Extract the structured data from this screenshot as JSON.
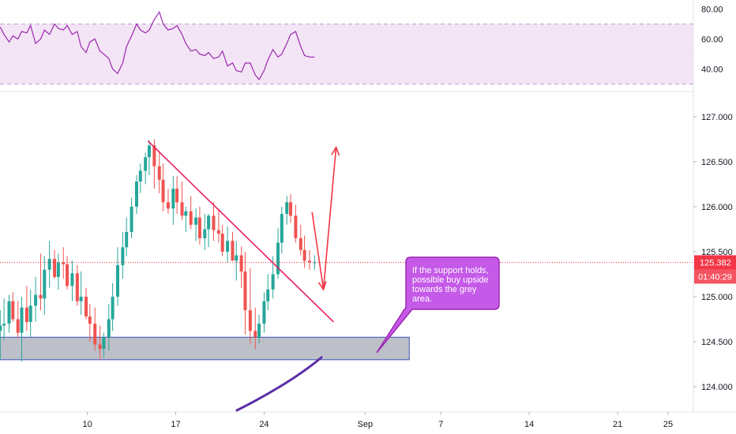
{
  "colors": {
    "up": "#26a69a",
    "down": "#ef5350",
    "rsi_line": "#9c27b0",
    "rsi_band": "#f3e5f5",
    "trendline": "#e91e63",
    "arrow": "#f23645",
    "support_fill": "#b2b5be",
    "support_border": "#3f51b5",
    "note_bg": "#c55ae8",
    "note_border": "#9c27b0",
    "curve": "#5b2ea6",
    "price_tag": "#f23645"
  },
  "rsi_panel": {
    "ticks": [
      "80.00",
      "60.00",
      "40.00"
    ],
    "tick_values": [
      80,
      60,
      40
    ],
    "band": [
      70,
      30
    ],
    "ylim": [
      25,
      86
    ]
  },
  "price_axis": {
    "ticks": [
      "127.000",
      "126.500",
      "126.000",
      "125.500",
      "125.000",
      "124.500",
      "124.000"
    ],
    "tick_values": [
      127.0,
      126.5,
      126.0,
      125.5,
      125.0,
      124.5,
      124.0
    ],
    "ylim": [
      123.72,
      127.28
    ]
  },
  "time_axis": {
    "ticks": [
      "10",
      "17",
      "24",
      "Sep",
      "7",
      "14",
      "21",
      "25"
    ],
    "tick_days": [
      10,
      17,
      24,
      32,
      38,
      45,
      52,
      56
    ],
    "xlim": [
      3.08,
      58
    ]
  },
  "last_price": {
    "label": "125.382",
    "value": 125.382
  },
  "countdown": {
    "label": "01:40:29"
  },
  "annotation": {
    "lines": [
      "If the support holds,",
      "possible buy upside",
      "towards the grey",
      "area."
    ]
  },
  "chart_data": [
    {
      "type": "line",
      "title": "",
      "xlabel": "",
      "ylabel": "",
      "x": [
        3.1,
        3.4,
        3.8,
        4.1,
        4.5,
        4.8,
        5.2,
        5.5,
        5.9,
        6.3,
        6.6,
        7.0,
        7.4,
        7.7,
        8.1,
        8.4,
        8.8,
        9.2,
        9.5,
        9.9,
        10.2,
        10.6,
        11.0,
        11.3,
        11.7,
        12.0,
        12.4,
        12.8,
        13.1,
        13.5,
        13.9,
        14.2,
        14.6,
        14.9,
        15.3,
        15.7,
        16.0,
        16.4,
        16.8,
        17.1,
        17.5,
        17.8,
        18.2,
        18.6,
        18.9,
        19.3,
        19.6,
        20.0,
        20.4,
        20.7,
        21.1,
        21.5,
        21.8,
        22.2,
        22.5,
        22.9,
        23.3,
        23.6,
        24.0,
        24.3,
        24.7,
        25.1,
        25.4,
        25.8,
        26.1,
        26.5,
        26.9,
        27.2,
        27.6,
        28.0
      ],
      "series": [
        {
          "values": [
            68,
            63,
            58,
            62,
            60,
            65,
            64,
            69,
            57,
            60,
            66,
            63,
            70,
            67,
            66,
            69,
            63,
            65,
            55,
            51,
            58,
            60,
            52,
            50,
            47,
            40,
            37,
            44,
            55,
            62,
            70,
            66,
            64,
            66,
            73,
            78,
            70,
            66,
            67,
            69,
            63,
            57,
            52,
            53,
            50,
            49,
            51,
            47,
            48,
            52,
            42,
            44,
            39,
            38,
            44,
            44,
            36,
            33,
            39,
            46,
            53,
            48,
            50,
            57,
            63,
            65,
            55,
            49,
            48,
            48
          ]
        }
      ],
      "band": [
        30,
        70
      ],
      "ylim": [
        25,
        86
      ],
      "ticks": [
        80,
        60,
        40
      ]
    },
    {
      "type": "candlestick",
      "title": "",
      "xlabel": "",
      "ylabel": "",
      "x_axis_ticks": [
        "10",
        "17",
        "24",
        "Sep",
        "7",
        "14",
        "21",
        "25"
      ],
      "ylim": [
        123.72,
        127.28
      ],
      "series": [
        {
          "open": [
            124.62,
            124.68,
            124.7,
            124.95,
            124.75,
            124.6,
            124.88,
            124.72,
            124.9,
            125.02,
            124.98,
            125.3,
            125.42,
            125.22,
            125.38,
            125.36,
            125.12,
            125.26,
            124.95,
            125.0,
            124.78,
            124.7,
            124.47,
            124.42,
            124.55,
            124.75,
            125.0,
            125.35,
            125.55,
            125.72,
            126.0,
            126.28,
            126.4,
            126.55,
            126.68,
            126.45,
            126.3,
            126.05,
            125.98,
            126.2,
            126.05,
            125.9,
            125.95,
            125.8,
            125.88,
            125.65,
            125.75,
            125.9,
            125.74,
            125.7,
            125.5,
            125.62,
            125.4,
            125.46,
            125.28,
            124.85,
            124.62,
            124.55,
            124.7,
            124.95,
            125.08,
            125.25,
            125.6,
            125.92,
            126.05,
            125.9,
            125.65,
            125.52,
            125.4,
            125.38
          ],
          "high": [
            124.85,
            124.98,
            125.02,
            125.05,
            124.95,
            125.0,
            125.12,
            125.08,
            125.22,
            125.48,
            125.45,
            125.62,
            125.52,
            125.48,
            125.55,
            125.45,
            125.4,
            125.35,
            125.28,
            125.1,
            124.92,
            124.88,
            124.68,
            124.6,
            124.92,
            125.15,
            125.55,
            125.72,
            125.88,
            126.1,
            126.35,
            126.48,
            126.6,
            126.74,
            126.75,
            126.62,
            126.48,
            126.2,
            126.34,
            126.34,
            126.28,
            126.0,
            126.12,
            125.98,
            126.0,
            125.92,
            125.92,
            126.05,
            125.98,
            125.8,
            125.78,
            125.72,
            125.62,
            125.56,
            125.5,
            125.32,
            124.88,
            124.8,
            125.05,
            125.25,
            125.45,
            125.76,
            126.0,
            126.12,
            126.14,
            126.02,
            125.8,
            125.68,
            125.52,
            125.46
          ],
          "low": [
            124.3,
            124.52,
            124.6,
            124.72,
            124.55,
            124.28,
            124.62,
            124.55,
            124.72,
            124.85,
            124.8,
            125.1,
            125.2,
            125.08,
            125.2,
            125.08,
            124.95,
            124.9,
            124.8,
            124.75,
            124.5,
            124.4,
            124.3,
            124.32,
            124.4,
            124.62,
            124.9,
            125.2,
            125.45,
            125.65,
            125.92,
            126.15,
            126.25,
            126.35,
            126.2,
            126.15,
            125.95,
            125.92,
            125.8,
            125.92,
            125.85,
            125.72,
            125.75,
            125.62,
            125.58,
            125.52,
            125.55,
            125.62,
            125.6,
            125.45,
            125.38,
            125.4,
            125.18,
            125.1,
            124.58,
            124.48,
            124.42,
            124.48,
            124.6,
            124.85,
            124.98,
            125.2,
            125.48,
            125.8,
            125.82,
            125.6,
            125.46,
            125.32,
            125.3,
            125.3
          ],
          "close": [
            124.68,
            124.7,
            124.95,
            124.75,
            124.6,
            124.88,
            124.72,
            124.9,
            125.02,
            124.98,
            125.3,
            125.42,
            125.22,
            125.38,
            125.36,
            125.12,
            125.26,
            124.95,
            125.0,
            124.78,
            124.7,
            124.47,
            124.42,
            124.55,
            124.75,
            125.0,
            125.35,
            125.55,
            125.72,
            126.0,
            126.28,
            126.4,
            126.55,
            126.68,
            126.45,
            126.3,
            126.05,
            125.98,
            126.2,
            126.05,
            125.9,
            125.95,
            125.8,
            125.88,
            125.65,
            125.75,
            125.9,
            125.74,
            125.7,
            125.5,
            125.62,
            125.4,
            125.46,
            125.28,
            124.85,
            124.62,
            124.55,
            124.7,
            124.95,
            125.08,
            125.25,
            125.6,
            125.92,
            126.05,
            125.9,
            125.65,
            125.52,
            125.4,
            125.38,
            125.382
          ]
        }
      ],
      "horizontal_line": 125.382,
      "support_zone": {
        "from_day": 3.08,
        "to_day": 35.5,
        "low": 124.3,
        "high": 124.55
      },
      "trendline": {
        "from": [
          14.8,
          126.73
        ],
        "to": [
          29.5,
          124.72
        ]
      },
      "arrows": [
        {
          "from": [
            27.8,
            125.94
          ],
          "to": [
            28.7,
            125.08
          ]
        },
        {
          "from": [
            28.7,
            125.08
          ],
          "to": [
            29.7,
            126.66
          ]
        }
      ]
    }
  ]
}
